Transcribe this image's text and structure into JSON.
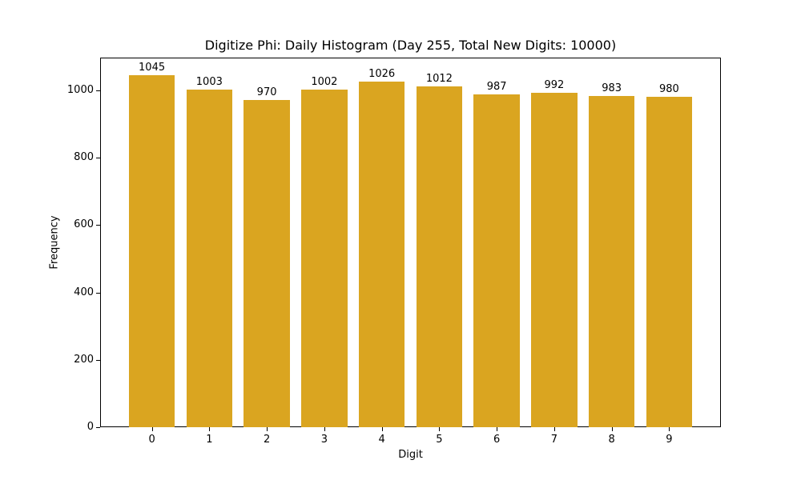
{
  "chart_data": {
    "type": "bar",
    "title": "Digitize Phi: Daily Histogram (Day 255, Total New Digits: 10000)",
    "xlabel": "Digit",
    "ylabel": "Frequency",
    "categories": [
      "0",
      "1",
      "2",
      "3",
      "4",
      "5",
      "6",
      "7",
      "8",
      "9"
    ],
    "values": [
      1045,
      1003,
      970,
      1002,
      1026,
      1012,
      987,
      992,
      983,
      980
    ],
    "bar_labels": [
      "1045",
      "1003",
      "970",
      "1002",
      "1026",
      "1012",
      "987",
      "992",
      "983",
      "980"
    ],
    "yticks": [
      0,
      200,
      400,
      600,
      800,
      1000
    ],
    "ytick_labels": [
      "0",
      "200",
      "400",
      "600",
      "800",
      "1000"
    ],
    "ylim": [
      0,
      1097
    ],
    "xlim": [
      -0.9,
      9.9
    ],
    "grid": false,
    "legend": null,
    "bar_color": "#DAA520"
  }
}
